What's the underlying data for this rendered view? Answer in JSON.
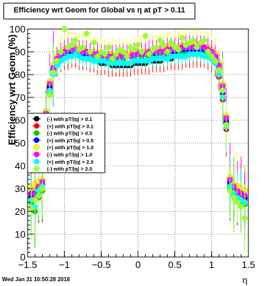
{
  "title": "Efficiency wrt Geom for Global vs  η at pT > 0.11",
  "timestamp": "Wed Jan 31 10:50:28 2018",
  "chart_data": {
    "type": "scatter",
    "title": "Efficiency wrt Geom for Global vs  η at pT > 0.11",
    "xlabel": "η",
    "ylabel": "Efficiency wrt Geom (%)",
    "xlim": [
      -1.5,
      1.5
    ],
    "ylim": [
      0,
      100
    ],
    "x_ticks": [
      -1.5,
      -1,
      -0.5,
      0,
      0.5,
      1,
      1.5
    ],
    "x_tick_labels": [
      "−1.5",
      "−1",
      "−0.5",
      "0",
      "0.5",
      "1",
      "1.5"
    ],
    "y_ticks": [
      0,
      10,
      20,
      30,
      40,
      50,
      60,
      70,
      80,
      90,
      100
    ],
    "y_tick_labels": [
      "0",
      "10",
      "20",
      "30",
      "40",
      "50",
      "60",
      "70",
      "80",
      "90",
      "100"
    ],
    "grid": true,
    "legend_position": "center-left",
    "x": [
      -1.45,
      -1.4,
      -1.35,
      -1.3,
      -1.25,
      -1.2,
      -1.15,
      -1.1,
      -1.05,
      -1.0,
      -0.95,
      -0.9,
      -0.85,
      -0.8,
      -0.75,
      -0.7,
      -0.65,
      -0.6,
      -0.55,
      -0.5,
      -0.45,
      -0.4,
      -0.35,
      -0.3,
      -0.25,
      -0.2,
      -0.15,
      -0.1,
      -0.05,
      0.0,
      0.05,
      0.1,
      0.15,
      0.2,
      0.25,
      0.3,
      0.35,
      0.4,
      0.45,
      0.5,
      0.55,
      0.6,
      0.65,
      0.7,
      0.75,
      0.8,
      0.85,
      0.9,
      0.95,
      1.0,
      1.05,
      1.1,
      1.15,
      1.2,
      1.25,
      1.3,
      1.35,
      1.4,
      1.45
    ],
    "series": [
      {
        "name": "(-) with pT/|q| > 0.1",
        "color": "#000000",
        "marker": "circle",
        "values": [
          27,
          28,
          29,
          31,
          62,
          75,
          82,
          85,
          87,
          88,
          89,
          89,
          89,
          88,
          88,
          87,
          87,
          86,
          86,
          85,
          85,
          85,
          84,
          84,
          84,
          84,
          84,
          84,
          85,
          85,
          85,
          85,
          86,
          86,
          86,
          86,
          87,
          87,
          87,
          88,
          88,
          88,
          88,
          89,
          89,
          89,
          89,
          89,
          88,
          87,
          85,
          80,
          70,
          58,
          32,
          29,
          28,
          27,
          26
        ]
      },
      {
        "name": "(+) with pT/|q| > 0.1",
        "color": "#ff0000",
        "marker": "circle",
        "values": [
          26,
          27,
          28,
          30,
          60,
          74,
          81,
          85,
          87,
          88,
          88,
          89,
          89,
          88,
          88,
          88,
          87,
          87,
          86,
          86,
          86,
          85,
          85,
          85,
          85,
          85,
          85,
          85,
          86,
          86,
          86,
          86,
          86,
          87,
          87,
          87,
          87,
          88,
          88,
          88,
          88,
          88,
          89,
          89,
          89,
          89,
          89,
          89,
          88,
          87,
          85,
          79,
          69,
          56,
          31,
          28,
          27,
          26,
          25
        ]
      },
      {
        "name": "(-) with pT/|q| > 0.5",
        "color": "#00cc00",
        "marker": "circle",
        "values": [
          24,
          20,
          26,
          29,
          58,
          72,
          80,
          84,
          86,
          88,
          89,
          90,
          90,
          89,
          89,
          89,
          88,
          88,
          88,
          87,
          88,
          87,
          87,
          87,
          88,
          87,
          88,
          88,
          88,
          89,
          88,
          89,
          88,
          89,
          89,
          89,
          90,
          89,
          90,
          90,
          90,
          90,
          91,
          90,
          91,
          91,
          91,
          90,
          90,
          89,
          87,
          83,
          74,
          60,
          30,
          27,
          25,
          24,
          23
        ]
      },
      {
        "name": "(+) with pT/|q| > 0.5",
        "color": "#0000ff",
        "marker": "circle",
        "values": [
          27,
          28,
          30,
          32,
          61,
          74,
          82,
          86,
          88,
          89,
          90,
          90,
          90,
          90,
          89,
          89,
          89,
          89,
          89,
          88,
          88,
          88,
          88,
          88,
          88,
          88,
          88,
          88,
          89,
          89,
          89,
          89,
          89,
          89,
          90,
          90,
          90,
          90,
          90,
          90,
          91,
          91,
          91,
          91,
          91,
          91,
          91,
          91,
          90,
          89,
          87,
          82,
          72,
          59,
          33,
          30,
          28,
          27,
          26
        ]
      },
      {
        "name": "(+) with pT/|q| > 1.0",
        "color": "#ffff00",
        "marker": "circle",
        "values": [
          30,
          32,
          33,
          34,
          64,
          77,
          84,
          88,
          90,
          91,
          92,
          92,
          92,
          91,
          91,
          90,
          90,
          90,
          89,
          89,
          89,
          89,
          89,
          88,
          89,
          89,
          89,
          89,
          90,
          90,
          90,
          90,
          90,
          91,
          91,
          91,
          91,
          92,
          92,
          92,
          92,
          93,
          93,
          93,
          93,
          93,
          93,
          92,
          92,
          91,
          89,
          85,
          76,
          62,
          35,
          32,
          31,
          30,
          29
        ]
      },
      {
        "name": "(-) with pT/|q| > 1.0",
        "color": "#ff00ff",
        "marker": "circle",
        "values": [
          28,
          26,
          31,
          33,
          63,
          76,
          83,
          87,
          89,
          90,
          91,
          91,
          91,
          90,
          90,
          90,
          89,
          89,
          89,
          88,
          88,
          88,
          88,
          88,
          88,
          88,
          88,
          88,
          89,
          89,
          89,
          89,
          90,
          90,
          90,
          90,
          90,
          91,
          91,
          91,
          91,
          92,
          92,
          92,
          92,
          92,
          92,
          92,
          91,
          90,
          88,
          84,
          75,
          61,
          34,
          31,
          29,
          28,
          27
        ]
      },
      {
        "name": "(+) with pT/|q| > 2.0",
        "color": "#00ffff",
        "marker": "circle",
        "values": [
          25,
          22,
          29,
          31,
          59,
          73,
          80,
          84,
          86,
          87,
          88,
          88,
          89,
          88,
          87,
          87,
          87,
          86,
          86,
          86,
          86,
          85,
          85,
          85,
          85,
          85,
          85,
          85,
          86,
          86,
          86,
          86,
          86,
          87,
          87,
          87,
          87,
          87,
          88,
          88,
          88,
          88,
          88,
          89,
          89,
          89,
          89,
          88,
          88,
          87,
          85,
          80,
          70,
          57,
          31,
          28,
          26,
          25,
          24
        ]
      },
      {
        "name": "(-) with pT/|q| > 2.0",
        "color": "#99ff33",
        "marker": "circle",
        "values": [
          21,
          25,
          27,
          30,
          57,
          71,
          81,
          86,
          90,
          100,
          92,
          93,
          95,
          91,
          92,
          98,
          90,
          94,
          88,
          90,
          89,
          92,
          87,
          89,
          91,
          90,
          88,
          92,
          91,
          93,
          90,
          97,
          89,
          91,
          92,
          95,
          93,
          90,
          94,
          92,
          91,
          96,
          93,
          94,
          95,
          92,
          94,
          95,
          90,
          88,
          86,
          82,
          73,
          58,
          29,
          26,
          24,
          22,
          17
        ]
      }
    ]
  }
}
